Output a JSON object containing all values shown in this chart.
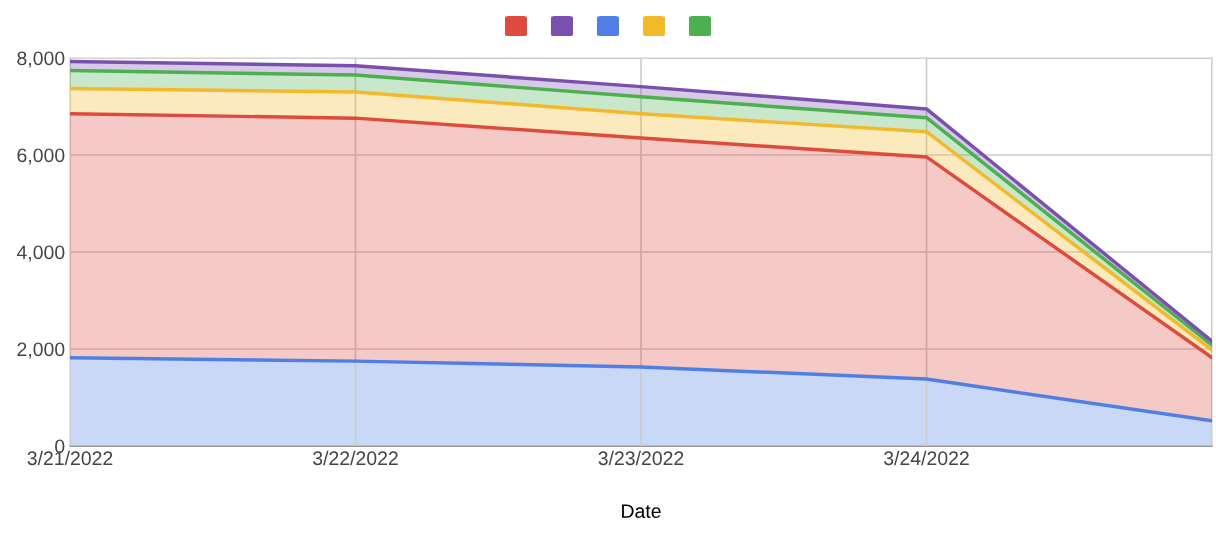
{
  "chart_data": {
    "type": "area",
    "stacked": true,
    "xlabel": "Date",
    "categories": [
      "3/21/2022",
      "3/22/2022",
      "3/23/2022",
      "3/24/2022",
      null
    ],
    "series": [
      {
        "color": "#4f7fe6",
        "values": [
          1820,
          1750,
          1630,
          1380,
          520
        ]
      },
      {
        "color": "#dd4b3e",
        "values": [
          5030,
          5010,
          4720,
          4580,
          1300
        ]
      },
      {
        "color": "#f4b92b",
        "values": [
          520,
          540,
          500,
          520,
          160
        ]
      },
      {
        "color": "#4caf50",
        "values": [
          370,
          350,
          350,
          290,
          100
        ]
      },
      {
        "color": "#7b4fad",
        "values": [
          190,
          190,
          210,
          180,
          80
        ]
      }
    ],
    "ylim": [
      0,
      8000
    ],
    "yticks": [
      {
        "value": 0,
        "label": "0"
      },
      {
        "value": 2000,
        "label": "2,000"
      },
      {
        "value": 4000,
        "label": "4,000"
      },
      {
        "value": 6000,
        "label": "6,000"
      },
      {
        "value": 8000,
        "label": "8,000"
      }
    ],
    "grid": true
  }
}
